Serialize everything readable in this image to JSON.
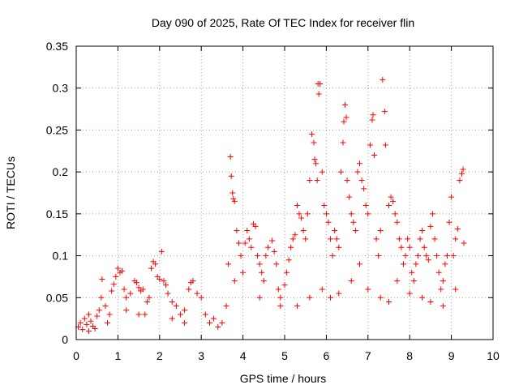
{
  "chart_data": {
    "type": "scatter",
    "title": "Day 090 of 2025, Rate Of TEC Index for receiver flin",
    "xlabel": "GPS time / hours",
    "ylabel": "ROTI / TECUs",
    "xlim": [
      0,
      10
    ],
    "ylim": [
      0,
      0.35
    ],
    "xticks": [
      0,
      1,
      2,
      3,
      4,
      5,
      6,
      7,
      8,
      9,
      10
    ],
    "yticks": [
      0,
      0.05,
      0.1,
      0.15,
      0.2,
      0.25,
      0.3,
      0.35
    ],
    "xtick_labels": [
      "0",
      "1",
      "2",
      "3",
      "4",
      "5",
      "6",
      "7",
      "8",
      "9",
      "10"
    ],
    "ytick_labels": [
      "0",
      "0.05",
      "0.1",
      "0.15",
      "0.2",
      "0.25",
      "0.3",
      "0.35"
    ],
    "grid": true,
    "marker": "+",
    "marker_color": "#ff0000",
    "series": [
      {
        "name": "ROTI",
        "points": [
          [
            0.05,
            0.015
          ],
          [
            0.1,
            0.02
          ],
          [
            0.15,
            0.012
          ],
          [
            0.2,
            0.025
          ],
          [
            0.25,
            0.018
          ],
          [
            0.3,
            0.01
          ],
          [
            0.35,
            0.022
          ],
          [
            0.4,
            0.016
          ],
          [
            0.45,
            0.013
          ],
          [
            0.5,
            0.028
          ],
          [
            0.55,
            0.035
          ],
          [
            0.6,
            0.05
          ],
          [
            0.62,
            0.072
          ],
          [
            0.7,
            0.04
          ],
          [
            0.75,
            0.02
          ],
          [
            0.8,
            0.03
          ],
          [
            0.85,
            0.058
          ],
          [
            0.9,
            0.066
          ],
          [
            0.95,
            0.075
          ],
          [
            1.0,
            0.085
          ],
          [
            1.05,
            0.08
          ],
          [
            1.1,
            0.082
          ],
          [
            1.15,
            0.06
          ],
          [
            1.2,
            0.05
          ],
          [
            1.3,
            0.055
          ],
          [
            1.4,
            0.07
          ],
          [
            1.45,
            0.068
          ],
          [
            1.5,
            0.062
          ],
          [
            1.55,
            0.058
          ],
          [
            1.6,
            0.06
          ],
          [
            1.65,
            0.03
          ],
          [
            1.7,
            0.045
          ],
          [
            1.75,
            0.05
          ],
          [
            1.8,
            0.085
          ],
          [
            1.85,
            0.093
          ],
          [
            1.9,
            0.09
          ],
          [
            1.95,
            0.075
          ],
          [
            2.0,
            0.072
          ],
          [
            2.05,
            0.105
          ],
          [
            2.1,
            0.07
          ],
          [
            2.15,
            0.065
          ],
          [
            2.2,
            0.055
          ],
          [
            2.3,
            0.045
          ],
          [
            2.4,
            0.04
          ],
          [
            2.5,
            0.03
          ],
          [
            2.6,
            0.035
          ],
          [
            2.7,
            0.06
          ],
          [
            2.75,
            0.068
          ],
          [
            2.8,
            0.07
          ],
          [
            2.9,
            0.055
          ],
          [
            3.0,
            0.05
          ],
          [
            3.1,
            0.03
          ],
          [
            3.2,
            0.02
          ],
          [
            3.3,
            0.025
          ],
          [
            3.4,
            0.015
          ],
          [
            3.5,
            0.02
          ],
          [
            3.6,
            0.04
          ],
          [
            3.65,
            0.09
          ],
          [
            3.7,
            0.218
          ],
          [
            3.72,
            0.195
          ],
          [
            3.75,
            0.175
          ],
          [
            3.77,
            0.168
          ],
          [
            3.8,
            0.165
          ],
          [
            3.85,
            0.13
          ],
          [
            3.9,
            0.115
          ],
          [
            3.95,
            0.1
          ],
          [
            4.0,
            0.08
          ],
          [
            4.05,
            0.115
          ],
          [
            4.1,
            0.13
          ],
          [
            4.15,
            0.12
          ],
          [
            4.2,
            0.11
          ],
          [
            4.25,
            0.138
          ],
          [
            4.3,
            0.135
          ],
          [
            4.35,
            0.1
          ],
          [
            4.4,
            0.09
          ],
          [
            4.45,
            0.08
          ],
          [
            4.5,
            0.07
          ],
          [
            4.55,
            0.1
          ],
          [
            4.6,
            0.11
          ],
          [
            4.7,
            0.118
          ],
          [
            4.75,
            0.105
          ],
          [
            4.8,
            0.09
          ],
          [
            4.85,
            0.06
          ],
          [
            4.9,
            0.05
          ],
          [
            5.0,
            0.065
          ],
          [
            5.05,
            0.08
          ],
          [
            5.1,
            0.095
          ],
          [
            5.15,
            0.11
          ],
          [
            5.2,
            0.12
          ],
          [
            5.25,
            0.125
          ],
          [
            5.3,
            0.16
          ],
          [
            5.35,
            0.15
          ],
          [
            5.4,
            0.145
          ],
          [
            5.45,
            0.13
          ],
          [
            5.5,
            0.12
          ],
          [
            5.55,
            0.15
          ],
          [
            5.6,
            0.19
          ],
          [
            5.65,
            0.245
          ],
          [
            5.7,
            0.235
          ],
          [
            5.72,
            0.215
          ],
          [
            5.75,
            0.21
          ],
          [
            5.78,
            0.19
          ],
          [
            5.8,
            0.305
          ],
          [
            5.82,
            0.293
          ],
          [
            5.85,
            0.305
          ],
          [
            5.9,
            0.2
          ],
          [
            5.95,
            0.16
          ],
          [
            6.0,
            0.15
          ],
          [
            6.05,
            0.14
          ],
          [
            6.1,
            0.12
          ],
          [
            6.15,
            0.1
          ],
          [
            6.2,
            0.13
          ],
          [
            6.25,
            0.12
          ],
          [
            6.3,
            0.11
          ],
          [
            6.35,
            0.2
          ],
          [
            6.4,
            0.235
          ],
          [
            6.42,
            0.26
          ],
          [
            6.45,
            0.28
          ],
          [
            6.48,
            0.265
          ],
          [
            6.5,
            0.19
          ],
          [
            6.55,
            0.17
          ],
          [
            6.6,
            0.15
          ],
          [
            6.65,
            0.14
          ],
          [
            6.7,
            0.13
          ],
          [
            6.75,
            0.2
          ],
          [
            6.8,
            0.21
          ],
          [
            6.85,
            0.19
          ],
          [
            6.9,
            0.18
          ],
          [
            6.95,
            0.16
          ],
          [
            7.0,
            0.15
          ],
          [
            7.05,
            0.232
          ],
          [
            7.1,
            0.262
          ],
          [
            7.12,
            0.268
          ],
          [
            7.15,
            0.22
          ],
          [
            7.2,
            0.12
          ],
          [
            7.25,
            0.1
          ],
          [
            7.3,
            0.13
          ],
          [
            7.35,
            0.31
          ],
          [
            7.4,
            0.272
          ],
          [
            7.42,
            0.232
          ],
          [
            7.5,
            0.16
          ],
          [
            7.55,
            0.17
          ],
          [
            7.6,
            0.165
          ],
          [
            7.65,
            0.15
          ],
          [
            7.7,
            0.14
          ],
          [
            7.75,
            0.12
          ],
          [
            7.8,
            0.11
          ],
          [
            7.85,
            0.09
          ],
          [
            7.9,
            0.1
          ],
          [
            7.95,
            0.12
          ],
          [
            8.0,
            0.11
          ],
          [
            8.05,
            0.08
          ],
          [
            8.1,
            0.07
          ],
          [
            8.15,
            0.09
          ],
          [
            8.2,
            0.1
          ],
          [
            8.25,
            0.12
          ],
          [
            8.3,
            0.13
          ],
          [
            8.35,
            0.11
          ],
          [
            8.4,
            0.1
          ],
          [
            8.45,
            0.095
          ],
          [
            8.5,
            0.135
          ],
          [
            8.55,
            0.15
          ],
          [
            8.6,
            0.12
          ],
          [
            8.65,
            0.1
          ],
          [
            8.7,
            0.08
          ],
          [
            8.75,
            0.06
          ],
          [
            8.8,
            0.07
          ],
          [
            8.85,
            0.09
          ],
          [
            8.9,
            0.1
          ],
          [
            8.95,
            0.14
          ],
          [
            9.0,
            0.17
          ],
          [
            9.05,
            0.1
          ],
          [
            9.1,
            0.12
          ],
          [
            9.15,
            0.132
          ],
          [
            9.2,
            0.19
          ],
          [
            9.25,
            0.198
          ],
          [
            9.28,
            0.203
          ],
          [
            9.3,
            0.115
          ],
          [
            0.3,
            0.03
          ],
          [
            1.2,
            0.035
          ],
          [
            1.5,
            0.03
          ],
          [
            2.3,
            0.025
          ],
          [
            2.6,
            0.02
          ],
          [
            3.8,
            0.07
          ],
          [
            4.4,
            0.05
          ],
          [
            4.9,
            0.04
          ],
          [
            5.3,
            0.04
          ],
          [
            5.6,
            0.05
          ],
          [
            5.9,
            0.06
          ],
          [
            6.1,
            0.05
          ],
          [
            6.3,
            0.055
          ],
          [
            6.6,
            0.07
          ],
          [
            6.8,
            0.09
          ],
          [
            7.0,
            0.06
          ],
          [
            7.3,
            0.05
          ],
          [
            7.5,
            0.045
          ],
          [
            7.7,
            0.07
          ],
          [
            8.0,
            0.055
          ],
          [
            8.3,
            0.05
          ],
          [
            8.5,
            0.045
          ],
          [
            8.8,
            0.04
          ],
          [
            9.1,
            0.06
          ]
        ]
      }
    ]
  }
}
